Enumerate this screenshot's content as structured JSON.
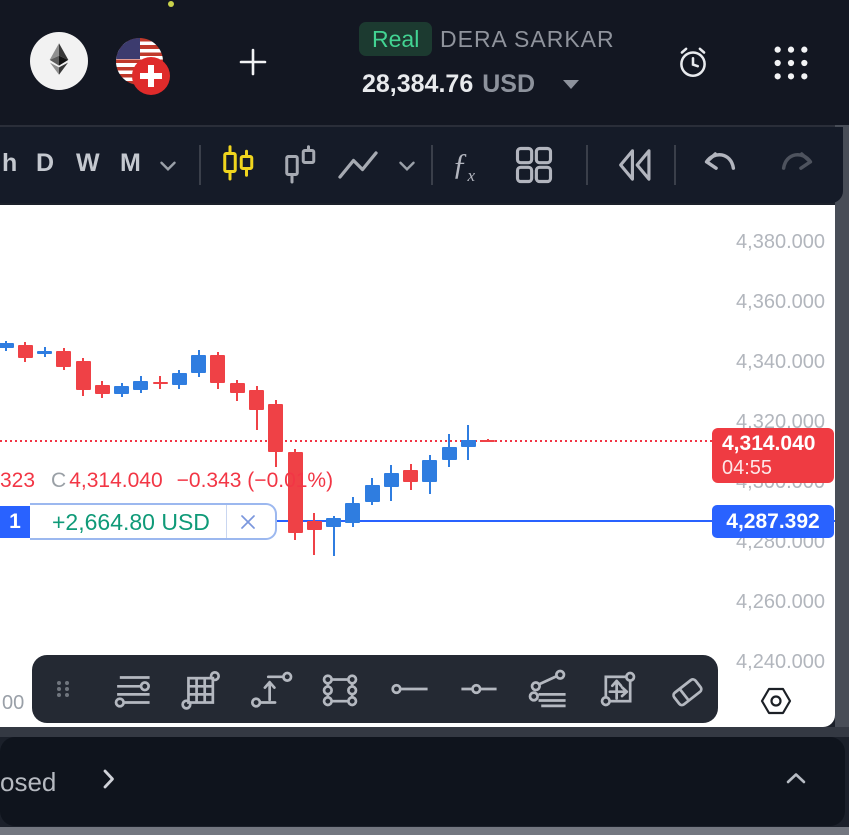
{
  "colors": {
    "red": "#f23645",
    "blue": "#2962ff",
    "candle_up": "#2f7de0",
    "candle_down": "#ef4146",
    "pnl_green": "#0f9a78",
    "badge_green_text": "#42d392",
    "accent_yellow": "#f0d51e"
  },
  "topbar": {
    "account_type_badge": "Real",
    "account_name": "DERA SARKAR",
    "balance": "28,384.76",
    "currency": "USD",
    "icons": [
      "ethereum-icon",
      "us-flag-icon",
      "swiss-flag-icon",
      "add-icon",
      "alarm-icon",
      "apps-grid-icon"
    ]
  },
  "toolbar": {
    "timeframes": [
      "h",
      "D",
      "W",
      "M"
    ],
    "fx_f": "ƒ",
    "fx_x": "x",
    "icons": [
      "candlestick-style-icon",
      "hollow-candle-style-icon",
      "line-style-icon",
      "indicators-fx-icon",
      "layouts-icon",
      "rewind-icon",
      "undo-icon",
      "redo-icon"
    ]
  },
  "chart": {
    "ohlc": {
      "low_fragment": "323",
      "close_prefix": "C",
      "close": "4,314.040",
      "change": "−0.343 (−0.01%)"
    },
    "position_badge": {
      "count": "1",
      "pnl": "+2,664.80 USD"
    },
    "current_price_badge": {
      "price": "4,314.040",
      "countdown": "04:55"
    },
    "position_price_badge": {
      "price": "4,287.392"
    },
    "time_axis_fragment": "00",
    "chart_data": {
      "type": "candlestick",
      "y_ticks": [
        4380,
        4360,
        4340,
        4320,
        4300,
        4280,
        4260,
        4240
      ],
      "current_price": 4314.04,
      "position_price": 4287.392,
      "candles": [
        {
          "o": 4345.0,
          "h": 4347.5,
          "l": 4344.0,
          "c": 4346.7
        },
        {
          "o": 4346.0,
          "h": 4347.0,
          "l": 4340.3,
          "c": 4341.7
        },
        {
          "o": 4343.3,
          "h": 4345.3,
          "l": 4342.0,
          "c": 4344.0
        },
        {
          "o": 4344.0,
          "h": 4345.0,
          "l": 4337.7,
          "c": 4338.7
        },
        {
          "o": 4340.7,
          "h": 4341.7,
          "l": 4329.0,
          "c": 4331.0
        },
        {
          "o": 4332.7,
          "h": 4334.0,
          "l": 4328.3,
          "c": 4329.7
        },
        {
          "o": 4329.7,
          "h": 4333.3,
          "l": 4328.7,
          "c": 4332.3
        },
        {
          "o": 4331.0,
          "h": 4335.7,
          "l": 4330.0,
          "c": 4334.0
        },
        {
          "o": 4333.7,
          "h": 4335.7,
          "l": 4331.3,
          "c": 4333.0
        },
        {
          "o": 4332.7,
          "h": 4337.7,
          "l": 4331.3,
          "c": 4336.7
        },
        {
          "o": 4336.7,
          "h": 4344.3,
          "l": 4335.3,
          "c": 4342.7
        },
        {
          "o": 4342.7,
          "h": 4343.7,
          "l": 4331.3,
          "c": 4333.3
        },
        {
          "o": 4333.3,
          "h": 4334.3,
          "l": 4327.3,
          "c": 4330.0
        },
        {
          "o": 4331.0,
          "h": 4332.3,
          "l": 4317.7,
          "c": 4324.3
        },
        {
          "o": 4326.3,
          "h": 4327.7,
          "l": 4305.3,
          "c": 4310.3
        },
        {
          "o": 4310.3,
          "h": 4311.3,
          "l": 4281.0,
          "c": 4283.3
        },
        {
          "o": 4287.3,
          "h": 4290.0,
          "l": 4276.0,
          "c": 4284.3
        },
        {
          "o": 4285.3,
          "h": 4289.0,
          "l": 4275.7,
          "c": 4288.3
        },
        {
          "o": 4286.7,
          "h": 4295.3,
          "l": 4285.3,
          "c": 4293.3
        },
        {
          "o": 4293.7,
          "h": 4301.7,
          "l": 4292.7,
          "c": 4299.3
        },
        {
          "o": 4298.7,
          "h": 4306.0,
          "l": 4294.0,
          "c": 4303.3
        },
        {
          "o": 4304.3,
          "h": 4306.3,
          "l": 4297.7,
          "c": 4300.3
        },
        {
          "o": 4300.3,
          "h": 4309.3,
          "l": 4296.3,
          "c": 4307.7
        },
        {
          "o": 4307.7,
          "h": 4316.3,
          "l": 4305.3,
          "c": 4312.0
        },
        {
          "o": 4312.0,
          "h": 4319.3,
          "l": 4307.7,
          "c": 4314.3
        },
        {
          "o": 4314.4,
          "h": 4314.6,
          "l": 4313.8,
          "c": 4314.04
        }
      ]
    }
  },
  "drawing_toolbar": {
    "icons": [
      "drag-handle-icon",
      "parallel-lines-icon",
      "fib-grid-icon",
      "trend-arrow-icon",
      "rectangle-tool-icon",
      "horizontal-line-icon",
      "horizontal-ray-icon",
      "fib-channel-icon",
      "projection-icon",
      "eraser-icon"
    ]
  },
  "bottom_panel": {
    "label_fragment": "osed"
  }
}
